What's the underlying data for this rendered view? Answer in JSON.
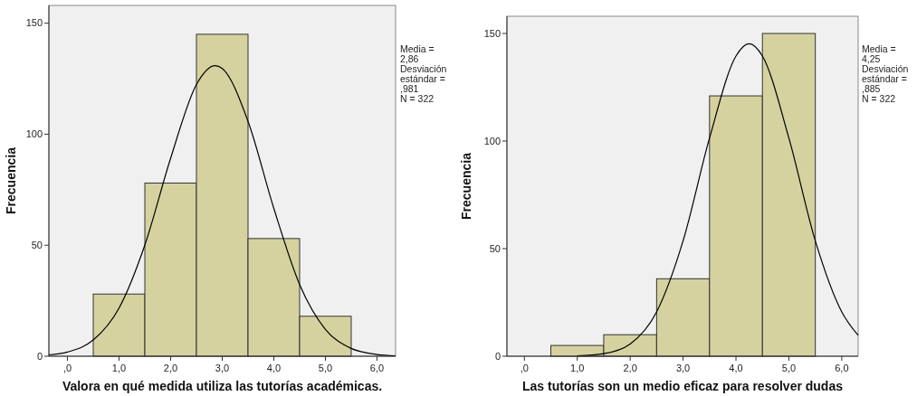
{
  "chart_data": [
    {
      "type": "histogram",
      "xlabel": "Valora en qué medida utiliza las tutorías académicas.",
      "ylabel": "Frecuencia",
      "bins": [
        0.5,
        1.5,
        2.5,
        3.5,
        4.5,
        5.5
      ],
      "values": [
        28,
        78,
        145,
        53,
        18
      ],
      "color": "#d5d2a0",
      "series": [
        {
          "type": "line",
          "color": "#000000",
          "x": [
            -0.36,
            0,
            0.5,
            1.0,
            1.5,
            2.0,
            2.5,
            2.86,
            3.0,
            3.5,
            4.0,
            4.5,
            5.0,
            5.5,
            6.0,
            6.36
          ],
          "values": [
            0.6,
            1.9,
            7.3,
            21.7,
            50.1,
            89.2,
            122.4,
            130.9,
            129.6,
            105.8,
            66.6,
            32.3,
            12.1,
            3.5,
            0.8,
            0.2
          ]
        }
      ],
      "xlim": [
        -0.36,
        6.36
      ],
      "xticks": [
        {
          "value": 0,
          "label": ",0"
        },
        {
          "value": 1,
          "label": "1,0"
        },
        {
          "value": 2,
          "label": "2,0"
        },
        {
          "value": 3,
          "label": "3,0"
        },
        {
          "value": 4,
          "label": "4,0"
        },
        {
          "value": 5,
          "label": "5,0"
        },
        {
          "value": 6,
          "label": "6,0"
        }
      ],
      "ylim": [
        0,
        158
      ],
      "yticks": [
        0,
        50,
        100,
        150
      ],
      "grid": false,
      "annotations": [
        "Media = 2,86",
        "Desviación estándar = ,981",
        "N = 322"
      ]
    },
    {
      "type": "histogram",
      "xlabel": "Las tutorías son un medio eficaz para resolver dudas",
      "ylabel": "Frecuencia",
      "bins": [
        0.5,
        1.5,
        2.5,
        3.5,
        4.5,
        5.5
      ],
      "values": [
        5,
        10,
        36,
        121,
        150
      ],
      "color": "#d5d2a0",
      "series": [
        {
          "type": "line",
          "color": "#000000",
          "x": [
            1.0,
            1.5,
            2.0,
            2.5,
            3.0,
            3.5,
            4.0,
            4.25,
            4.5,
            5.0,
            5.5,
            6.0,
            6.31
          ],
          "values": [
            0.2,
            1.2,
            5.7,
            20.6,
            53.6,
            101.4,
            139.5,
            145.2,
            139.5,
            101.4,
            53.6,
            20.6,
            9.7
          ]
        }
      ],
      "xlim": [
        -0.33,
        6.31
      ],
      "xticks": [
        {
          "value": 0,
          "label": ",0"
        },
        {
          "value": 1,
          "label": "1,0"
        },
        {
          "value": 2,
          "label": "2,0"
        },
        {
          "value": 3,
          "label": "3,0"
        },
        {
          "value": 4,
          "label": "4,0"
        },
        {
          "value": 5,
          "label": "5,0"
        },
        {
          "value": 6,
          "label": "6,0"
        }
      ],
      "ylim": [
        0,
        158
      ],
      "yticks": [
        0,
        50,
        100,
        150
      ],
      "grid": false,
      "annotations": [
        "Media = 4,25",
        "Desviación estándar = ,885",
        "N = 322"
      ]
    }
  ]
}
